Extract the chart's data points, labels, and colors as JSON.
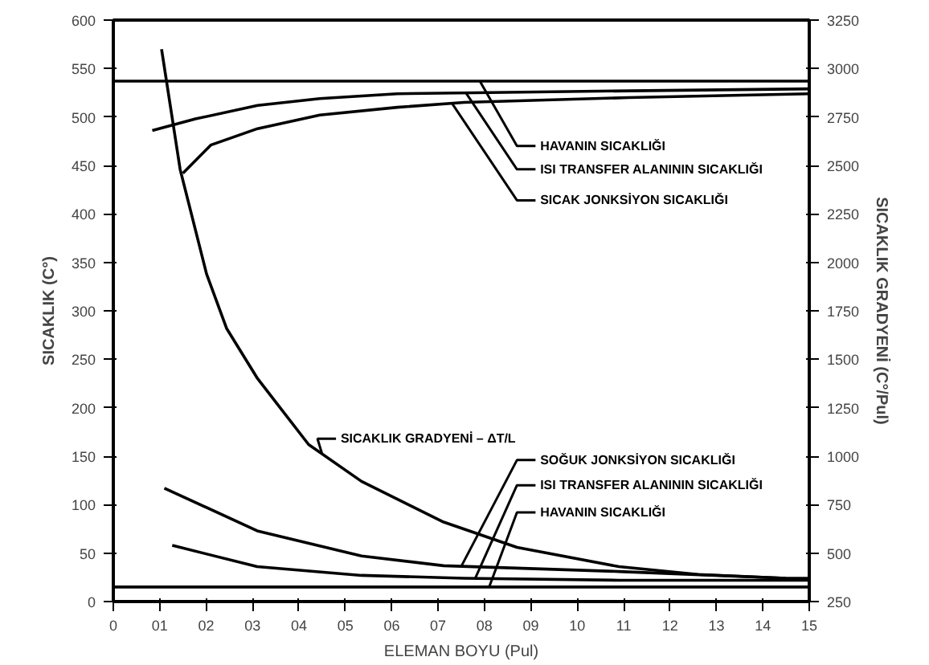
{
  "chart_data": {
    "type": "line",
    "xlabel": "ELEMAN BOYU (Pul)",
    "ylabel": "SICAKLIK (C°)",
    "y2label": "SICAKLIK GRADYENİ (C°/Pul)",
    "xlim": [
      0,
      15
    ],
    "xticks": [
      0,
      {
        "value": 1,
        "label": "01"
      },
      {
        "value": 2,
        "label": "02"
      },
      {
        "value": 3,
        "label": "03"
      },
      {
        "value": 4,
        "label": "04"
      },
      {
        "value": 5,
        "label": "05"
      },
      {
        "value": 6,
        "label": "06"
      },
      {
        "value": 7,
        "label": "07"
      },
      {
        "value": 8,
        "label": "08"
      },
      {
        "value": 9,
        "label": "09"
      },
      10,
      11,
      12,
      13,
      14,
      15
    ],
    "ylim": [
      0,
      600
    ],
    "yticks": [
      0,
      50,
      100,
      150,
      200,
      250,
      300,
      350,
      400,
      450,
      500,
      550,
      600
    ],
    "y2lim": [
      250,
      3250
    ],
    "y2ticks": [
      250,
      500,
      750,
      1000,
      1250,
      1500,
      1750,
      2000,
      2250,
      2500,
      2750,
      3000,
      3250
    ],
    "grid": false,
    "marker": "none",
    "line_style": "solid",
    "series": [
      {
        "name": "HAVANIN SICAKLIĞI",
        "color": "#000000",
        "x": [
          0,
          15
        ],
        "values": [
          537,
          537
        ]
      },
      {
        "name": "ISI TRANSFER ALANININ SICAKLIĞI",
        "color": "#000000",
        "x": [
          0.84,
          1.77,
          3.11,
          4.45,
          6.12,
          7.79,
          11.1,
          15
        ],
        "values": [
          486,
          498,
          512,
          519,
          524,
          525,
          527,
          529
        ]
      },
      {
        "name": "SICAK JONKSİYON SICAKLIĞI",
        "color": "#000000",
        "x": [
          1.5,
          2.1,
          3.11,
          4.45,
          6.12,
          7.56,
          11.1,
          15
        ],
        "values": [
          442,
          471,
          488,
          502,
          510,
          515,
          520,
          524
        ]
      },
      {
        "name": "SICAKLIK GRADYENİ – ΔT/L",
        "color": "#000000",
        "axis": "y2",
        "x": [
          1.04,
          1.44,
          2.01,
          2.44,
          3.11,
          4.21,
          5.35,
          7.12,
          8.7,
          10.9,
          12.6,
          14.5
        ],
        "values": [
          3100,
          2480,
          1940,
          1660,
          1400,
          1060,
          870,
          660,
          530,
          430,
          390,
          370
        ]
      },
      {
        "name": "SOĞUK JONKSİYON SICAKLIĞI",
        "color": "#000000",
        "x": [
          1.1,
          3.1,
          5.35,
          7.12,
          10.9,
          14.5,
          15
        ],
        "values": [
          117,
          73,
          47,
          37,
          31,
          24,
          24
        ]
      },
      {
        "name": "ISI TRANSFER ALANININ SICAKLIĞI",
        "color": "#000000",
        "x": [
          1.27,
          3.1,
          5.35,
          7.56,
          10.9,
          14.5,
          15
        ],
        "values": [
          58,
          36,
          27,
          24,
          22,
          22,
          22
        ]
      },
      {
        "name": "HAVANIN SICAKLIĞI",
        "color": "#000000",
        "x": [
          0,
          15
        ],
        "values": [
          15,
          15
        ]
      }
    ]
  }
}
